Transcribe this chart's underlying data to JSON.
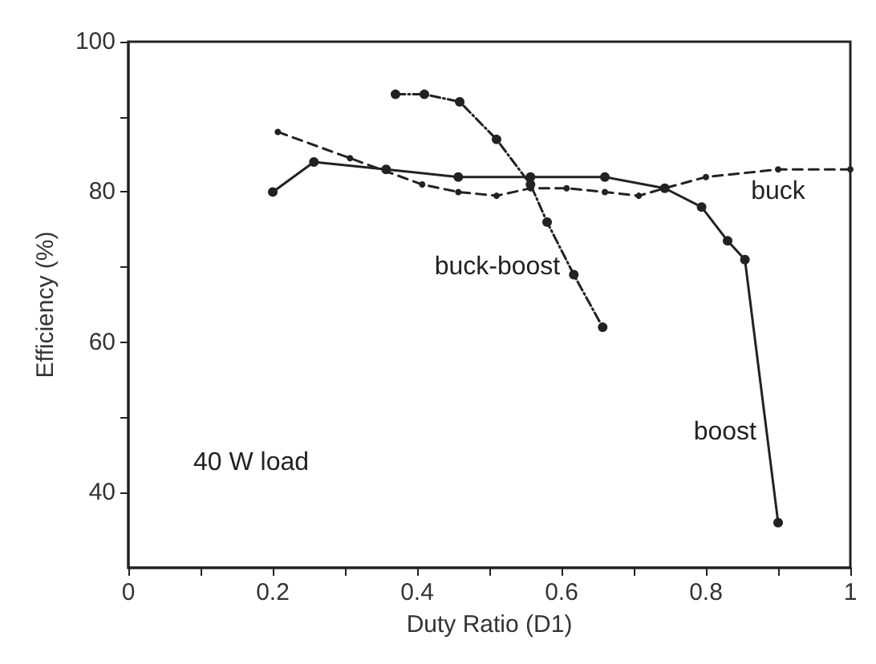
{
  "chart_data": {
    "type": "line",
    "xlabel": "Duty Ratio (D1)",
    "ylabel": "Efficiency (%)",
    "xlim": [
      0,
      1
    ],
    "ylim": [
      30,
      100
    ],
    "xticks": [
      0,
      {
        "value": 0.1,
        "label": null
      },
      0.2,
      {
        "value": 0.3,
        "label": null
      },
      0.4,
      {
        "value": 0.5,
        "label": null
      },
      0.6,
      {
        "value": 0.7,
        "label": null
      },
      0.8,
      {
        "value": 0.9,
        "label": null
      },
      1
    ],
    "yticks": [
      40,
      {
        "value": 50,
        "label": null
      },
      60,
      {
        "value": 70,
        "label": null
      },
      80,
      {
        "value": 90,
        "label": null
      },
      100
    ],
    "grid": false,
    "legend": false,
    "marker": "circle",
    "annotations": [
      "40 W load"
    ],
    "series": [
      {
        "name": "boost",
        "color": "#222222",
        "line_style": "solid",
        "x": [
          0.2,
          0.257,
          0.357,
          0.457,
          0.557,
          0.66,
          0.743,
          0.794,
          0.83,
          0.854,
          0.9
        ],
        "values": [
          80,
          84,
          83,
          82,
          82,
          82,
          80.5,
          78,
          73.5,
          71,
          36
        ]
      },
      {
        "name": "buck",
        "color": "#222222",
        "line_style": "dashed",
        "x": [
          0.207,
          0.307,
          0.407,
          0.457,
          0.51,
          0.557,
          0.607,
          0.66,
          0.707,
          0.743,
          0.8,
          0.9,
          1
        ],
        "values": [
          88,
          84.5,
          81,
          80,
          79.5,
          80.5,
          80.5,
          80,
          79.5,
          80.5,
          82,
          83,
          83
        ]
      },
      {
        "name": "buck-boost",
        "color": "#222222",
        "line_style": "dotted",
        "x": [
          0.37,
          0.41,
          0.459,
          0.51,
          0.557,
          0.58,
          0.617,
          0.657
        ],
        "values": [
          93,
          93,
          92,
          87,
          81,
          76,
          69,
          62
        ]
      }
    ]
  }
}
